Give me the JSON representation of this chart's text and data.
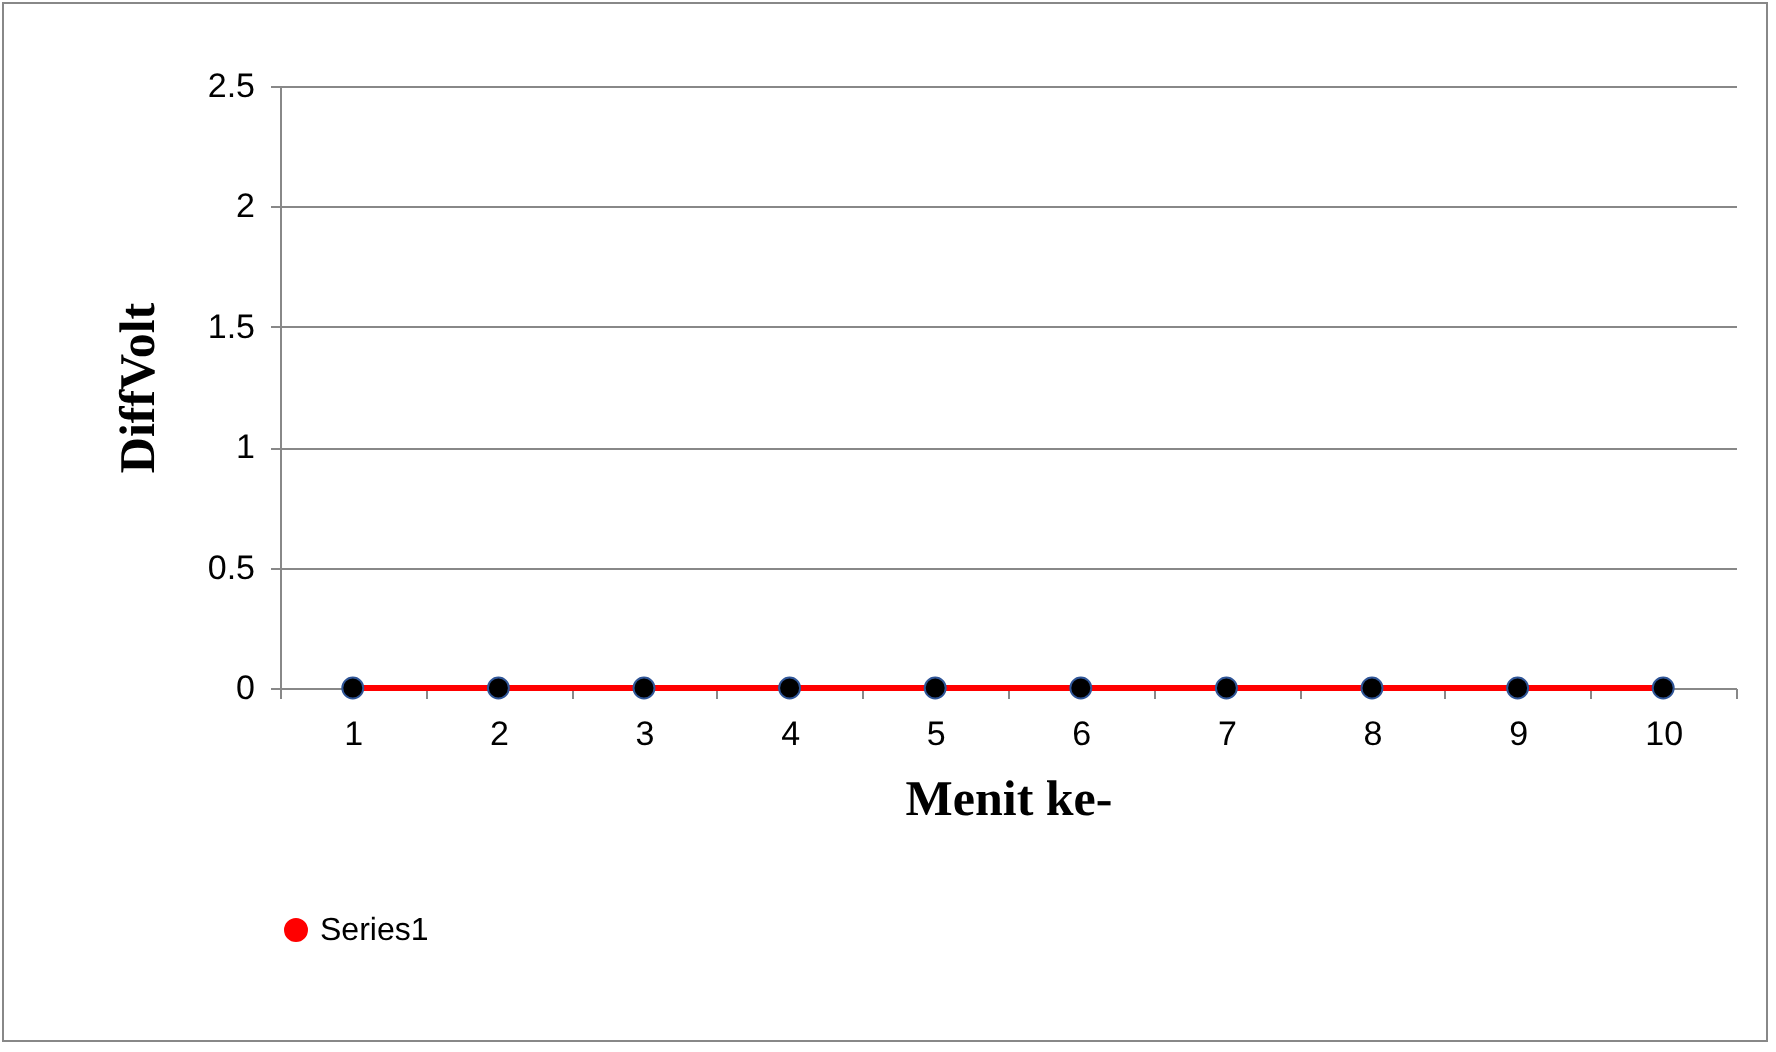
{
  "chart_data": {
    "type": "line",
    "xlabel": "Menit ke-",
    "ylabel": "DiffVolt",
    "categories": [
      "1",
      "2",
      "3",
      "4",
      "5",
      "6",
      "7",
      "8",
      "9",
      "10"
    ],
    "series": [
      {
        "name": "Series1",
        "color": "#ff0000",
        "values": [
          0,
          0,
          0,
          0,
          0,
          0,
          0,
          0,
          0,
          0
        ]
      }
    ],
    "ylim": [
      0,
      2.5
    ],
    "yticks": [
      0,
      0.5,
      1,
      1.5,
      2,
      2.5
    ],
    "grid": "y",
    "legend": "bottom",
    "marker": "circle"
  }
}
